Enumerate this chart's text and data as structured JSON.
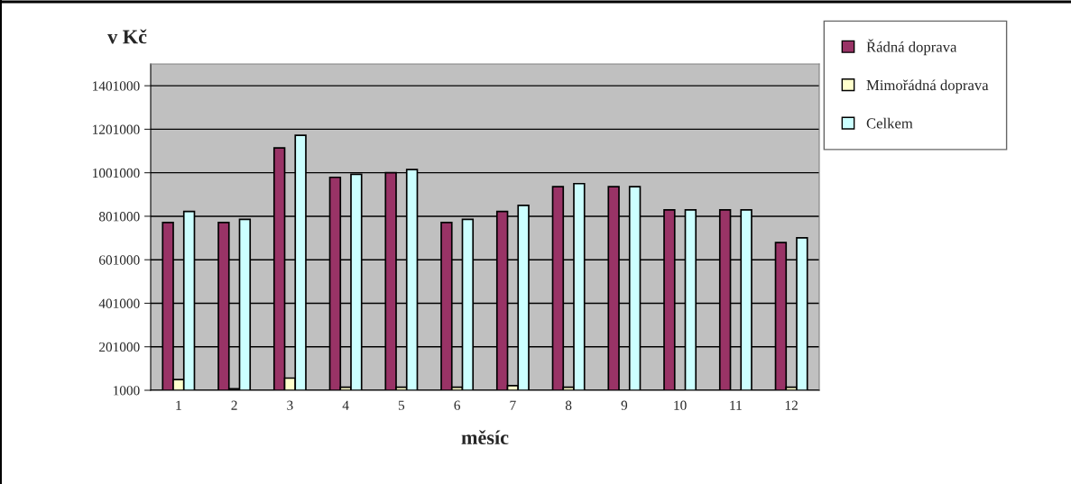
{
  "chart_data": {
    "type": "bar",
    "ylabel": "v Kč",
    "xlabel": "měsíc",
    "categories": [
      "1",
      "2",
      "3",
      "4",
      "5",
      "6",
      "7",
      "8",
      "9",
      "10",
      "11",
      "12"
    ],
    "series": [
      {
        "name": "Řádná doprava",
        "color": "#993366",
        "values": [
          772000,
          772000,
          1115000,
          980000,
          1001000,
          772000,
          823000,
          937000,
          937000,
          830000,
          830000,
          680000
        ]
      },
      {
        "name": "Mimořádná doprava",
        "color": "#ffffcc",
        "values": [
          50000,
          8000,
          57000,
          15000,
          15000,
          15000,
          22000,
          15000,
          null,
          null,
          null,
          15000
        ]
      },
      {
        "name": "Celkem",
        "color": "#ccffff",
        "values": [
          823000,
          787000,
          1173000,
          994000,
          1016000,
          787000,
          851000,
          951000,
          937000,
          830000,
          830000,
          702000
        ]
      }
    ],
    "ylim": [
      1000,
      1501000
    ],
    "yticks": [
      1000,
      201000,
      401000,
      601000,
      801000,
      1001000,
      1201000,
      1401000
    ],
    "grid": "y",
    "legend": "right"
  }
}
